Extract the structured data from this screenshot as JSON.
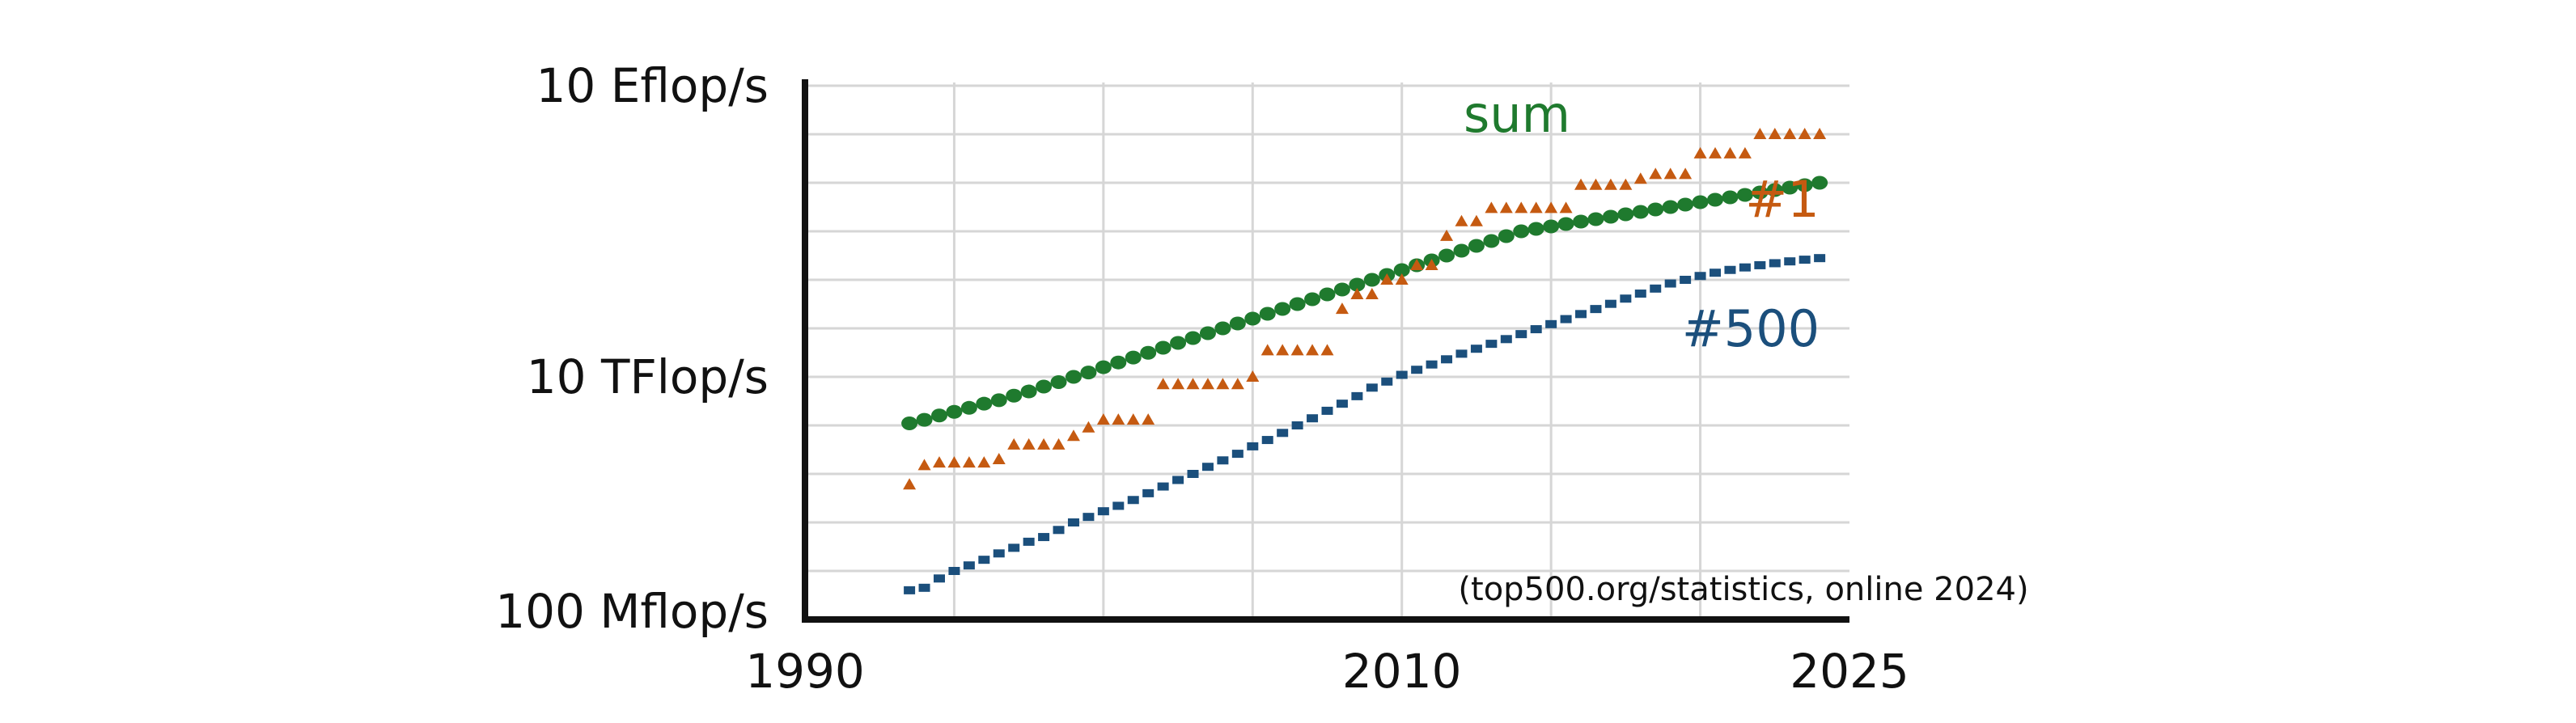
{
  "chart_data": {
    "type": "scatter",
    "xscale": "linear",
    "yscale": "log",
    "xlim": [
      1990,
      2025
    ],
    "ylim": [
      0.1,
      10000000000
    ],
    "y_unit": "Gflop/s",
    "grid": true,
    "legend": "inline labels at series ends",
    "yticks": [
      {
        "value": 0.1,
        "label": "100 Mflop/s"
      },
      {
        "value": 10000,
        "label": "10 TFlop/s"
      },
      {
        "value": 10000000000,
        "label": "10 Eflop/s"
      }
    ],
    "xticks": [
      {
        "value": 1990,
        "label": "1990"
      },
      {
        "value": 2010,
        "label": "2010"
      },
      {
        "value": 2025,
        "label": "2025"
      }
    ],
    "annotation": "(top500.org/statistics, online 2024)",
    "series": [
      {
        "name": "sum",
        "color": "#1f7a2e",
        "marker": "circle",
        "x": [
          1993.5,
          1994.0,
          1994.5,
          1995.0,
          1995.5,
          1996.0,
          1996.5,
          1997.0,
          1997.5,
          1998.0,
          1998.5,
          1999.0,
          1999.5,
          2000.0,
          2000.5,
          2001.0,
          2001.5,
          2002.0,
          2002.5,
          2003.0,
          2003.5,
          2004.0,
          2004.5,
          2005.0,
          2005.5,
          2006.0,
          2006.5,
          2007.0,
          2007.5,
          2008.0,
          2008.5,
          2009.0,
          2009.5,
          2010.0,
          2010.5,
          2011.0,
          2011.5,
          2012.0,
          2012.5,
          2013.0,
          2013.5,
          2014.0,
          2014.5,
          2015.0,
          2015.5,
          2016.0,
          2016.5,
          2017.0,
          2017.5,
          2018.0,
          2018.5,
          2019.0,
          2019.5,
          2020.0,
          2020.5,
          2021.0,
          2021.5,
          2022.0,
          2022.5,
          2023.0,
          2023.5,
          2024.0
        ],
        "y": [
          1100,
          1300,
          1600,
          1900,
          2300,
          2800,
          3300,
          4100,
          5000,
          6300,
          7800,
          10000,
          12300,
          15800,
          19800,
          25000,
          31300,
          39800,
          50100,
          63100,
          79400,
          100000,
          125900,
          158500,
          199500,
          251200,
          316200,
          398100,
          501200,
          631000,
          794300,
          1000000,
          1259000,
          1585000,
          1995000,
          2512000,
          3162000,
          3981000,
          5012000,
          6310000,
          7943000,
          10000000,
          11220000,
          12590000,
          14130000,
          15850000,
          17780000,
          19950000,
          22390000,
          25120000,
          28180000,
          31620000,
          35480000,
          39810000,
          44670000,
          50120000,
          56230000,
          63100000,
          70790000,
          79430000,
          89130000,
          100000000
        ]
      },
      {
        "name": "#1",
        "color": "#c55a11",
        "marker": "triangle",
        "x": [
          1993.5,
          1994.0,
          1994.5,
          1995.0,
          1995.5,
          1996.0,
          1996.5,
          1997.0,
          1997.5,
          1998.0,
          1998.5,
          1999.0,
          1999.5,
          2000.0,
          2000.5,
          2001.0,
          2001.5,
          2002.0,
          2002.5,
          2003.0,
          2003.5,
          2004.0,
          2004.5,
          2005.0,
          2005.5,
          2006.0,
          2006.5,
          2007.0,
          2007.5,
          2008.0,
          2008.5,
          2009.0,
          2009.5,
          2010.0,
          2010.5,
          2011.0,
          2011.5,
          2012.0,
          2012.5,
          2013.0,
          2013.5,
          2014.0,
          2014.5,
          2015.0,
          2015.5,
          2016.0,
          2016.5,
          2017.0,
          2017.5,
          2018.0,
          2018.5,
          2019.0,
          2019.5,
          2020.0,
          2020.5,
          2021.0,
          2021.5,
          2022.0,
          2022.5,
          2023.0,
          2023.5,
          2024.0
        ],
        "y": [
          60,
          150,
          170,
          170,
          170,
          170,
          200,
          400,
          400,
          400,
          400,
          600,
          900,
          1300,
          1300,
          1300,
          1300,
          7000,
          7000,
          7000,
          7000,
          7000,
          7000,
          10000,
          35000,
          35000,
          35000,
          35000,
          35000,
          250000,
          500000,
          500000,
          1000000,
          1000000,
          2000000,
          2000000,
          8000000,
          16000000,
          16000000,
          30000000,
          30000000,
          30000000,
          30000000,
          30000000,
          30000000,
          90000000,
          90000000,
          90000000,
          90000000,
          120000000,
          150000000,
          150000000,
          150000000,
          400000000,
          400000000,
          400000000,
          400000000,
          1000000000,
          1000000000,
          1000000000,
          1000000000,
          1000000000
        ]
      },
      {
        "name": "#500",
        "color": "#1b4f7c",
        "marker": "square",
        "x": [
          1993.5,
          1994.0,
          1994.5,
          1995.0,
          1995.5,
          1996.0,
          1996.5,
          1997.0,
          1997.5,
          1998.0,
          1998.5,
          1999.0,
          1999.5,
          2000.0,
          2000.5,
          2001.0,
          2001.5,
          2002.0,
          2002.5,
          2003.0,
          2003.5,
          2004.0,
          2004.5,
          2005.0,
          2005.5,
          2006.0,
          2006.5,
          2007.0,
          2007.5,
          2008.0,
          2008.5,
          2009.0,
          2009.5,
          2010.0,
          2010.5,
          2011.0,
          2011.5,
          2012.0,
          2012.5,
          2013.0,
          2013.5,
          2014.0,
          2014.5,
          2015.0,
          2015.5,
          2016.0,
          2016.5,
          2017.0,
          2017.5,
          2018.0,
          2018.5,
          2019.0,
          2019.5,
          2020.0,
          2020.5,
          2021.0,
          2021.5,
          2022.0,
          2022.5,
          2023.0,
          2023.5,
          2024.0
        ],
        "y": [
          0.4,
          0.45,
          0.7,
          1.0,
          1.3,
          1.7,
          2.3,
          3.0,
          4.0,
          5.0,
          7.0,
          10.0,
          13.0,
          17.0,
          22.0,
          29.0,
          40.0,
          55.0,
          75.0,
          100.0,
          140.0,
          190.0,
          260.0,
          370.0,
          500.0,
          700.0,
          1000.0,
          1400.0,
          2000.0,
          2800.0,
          4000.0,
          6000.0,
          8000.0,
          11000.0,
          14000.0,
          18000.0,
          23000.0,
          30000.0,
          38000.0,
          48000.0,
          60000.0,
          76000.0,
          96000.0,
          122000.0,
          155000.0,
          197000.0,
          250000.0,
          320000.0,
          410000.0,
          520000.0,
          660000.0,
          840000.0,
          1000000.0,
          1200000.0,
          1400000.0,
          1600000.0,
          1800000.0,
          2000000.0,
          2200000.0,
          2400000.0,
          2600000.0,
          2800000.0
        ]
      }
    ]
  }
}
